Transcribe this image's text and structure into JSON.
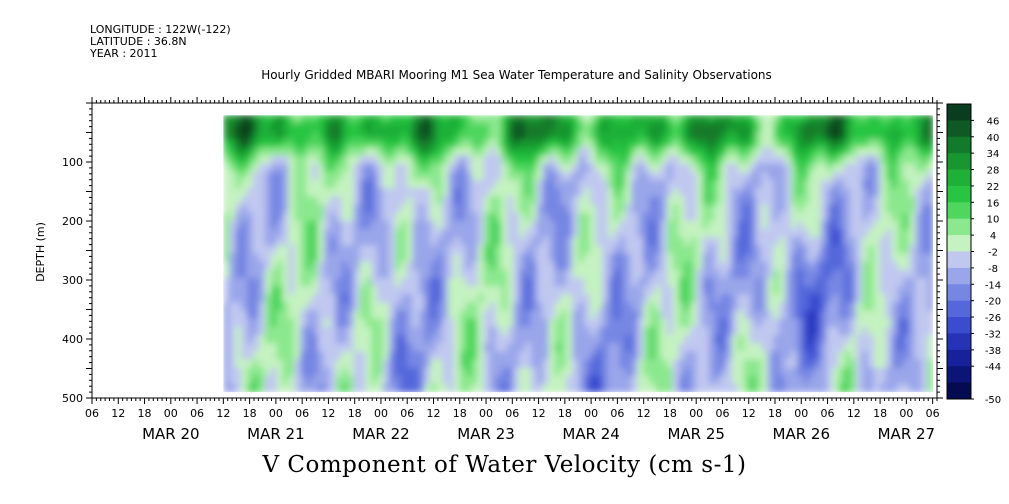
{
  "header": {
    "longitude": "LONGITUDE : 122W(-122)",
    "latitude": "LATITUDE : 36.8N",
    "year": "YEAR : 2011"
  },
  "chart_data": {
    "type": "heatmap",
    "title": "Hourly Gridded MBARI Mooring M1 Sea Water Temperature and Salinity Observations",
    "quantity_label": "V Component of Water Velocity (cm s-1)",
    "ylabel": "DEPTH (m)",
    "ylim": [
      500,
      0
    ],
    "y_ticks": [
      100,
      200,
      300,
      400,
      500
    ],
    "x_range": [
      "2011-03-19T06:00",
      "2011-03-27T07:00"
    ],
    "data_start": "2011-03-20T12:00",
    "hour_ticks": [
      "06",
      "12",
      "18",
      "00",
      "06",
      "12",
      "18",
      "00",
      "06",
      "12",
      "18",
      "00",
      "06",
      "12",
      "18",
      "00",
      "06",
      "12",
      "18",
      "00",
      "06",
      "12",
      "18",
      "00",
      "06",
      "12",
      "18",
      "00",
      "06",
      "12",
      "18",
      "00",
      "06"
    ],
    "day_labels": [
      "MAR 20",
      "MAR 21",
      "MAR 22",
      "MAR 23",
      "MAR 24",
      "MAR 25",
      "MAR 26",
      "MAR 27"
    ],
    "depth_range_observed": [
      20,
      490
    ],
    "colorbar": {
      "levels": [
        46,
        40,
        34,
        28,
        22,
        16,
        10,
        4,
        -2,
        -8,
        -14,
        -20,
        -26,
        -32,
        -38,
        -44,
        -50
      ],
      "colors_top_to_bottom": [
        "#0a3d1f",
        "#0e5a24",
        "#127a2b",
        "#18962f",
        "#1fb038",
        "#28c543",
        "#4fd65f",
        "#8ce88e",
        "#c4f2c0",
        "#c0c8f0",
        "#9aa6ea",
        "#7686e3",
        "#5568db",
        "#3a4cd0",
        "#2633b8",
        "#16219a",
        "#0b1578",
        "#050b50"
      ]
    },
    "features": {
      "surface_layer": "strong positive (dark green) values 20-100 m throughout the record",
      "interior": "alternating positive (green) and negative (blue) bands with depth",
      "strongest_negative": "around 300-400 m on MAR 25-26 (about -20 to -26)"
    }
  }
}
